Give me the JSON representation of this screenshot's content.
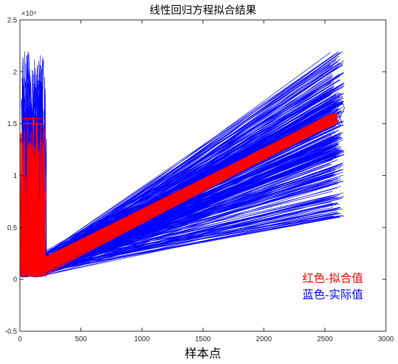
{
  "chart_data": {
    "type": "line",
    "title": "线性回归方程拟合结果",
    "xlabel": "样本点",
    "ylabel": "",
    "xlim": [
      0,
      3000
    ],
    "ylim": [
      -5000,
      25000
    ],
    "x_ticks": [
      "0",
      "500",
      "1000",
      "1500",
      "2000",
      "2500",
      "3000"
    ],
    "y_ticks": [
      "-0.5",
      "0",
      "0.5",
      "1",
      "1.5",
      "2",
      "2.5"
    ],
    "y_exponent": "×10⁴",
    "grid": false,
    "legend_position": "bottom-right",
    "annotations": [
      "红色-拟合值",
      "蓝色-实际值"
    ],
    "series": [
      {
        "name": "实际值",
        "color": "#0000ff",
        "x": [
          0,
          50,
          100,
          150,
          200,
          2550,
          2600,
          2650
        ],
        "y": [
          500,
          18000,
          12000,
          15000,
          1000,
          22000,
          15000,
          17000
        ]
      },
      {
        "name": "拟合值",
        "color": "#ff0000",
        "x": [
          0,
          50,
          100,
          150,
          200,
          2550,
          2600
        ],
        "y": [
          500,
          15500,
          1000,
          15500,
          1000,
          15500,
          15800
        ]
      }
    ]
  }
}
